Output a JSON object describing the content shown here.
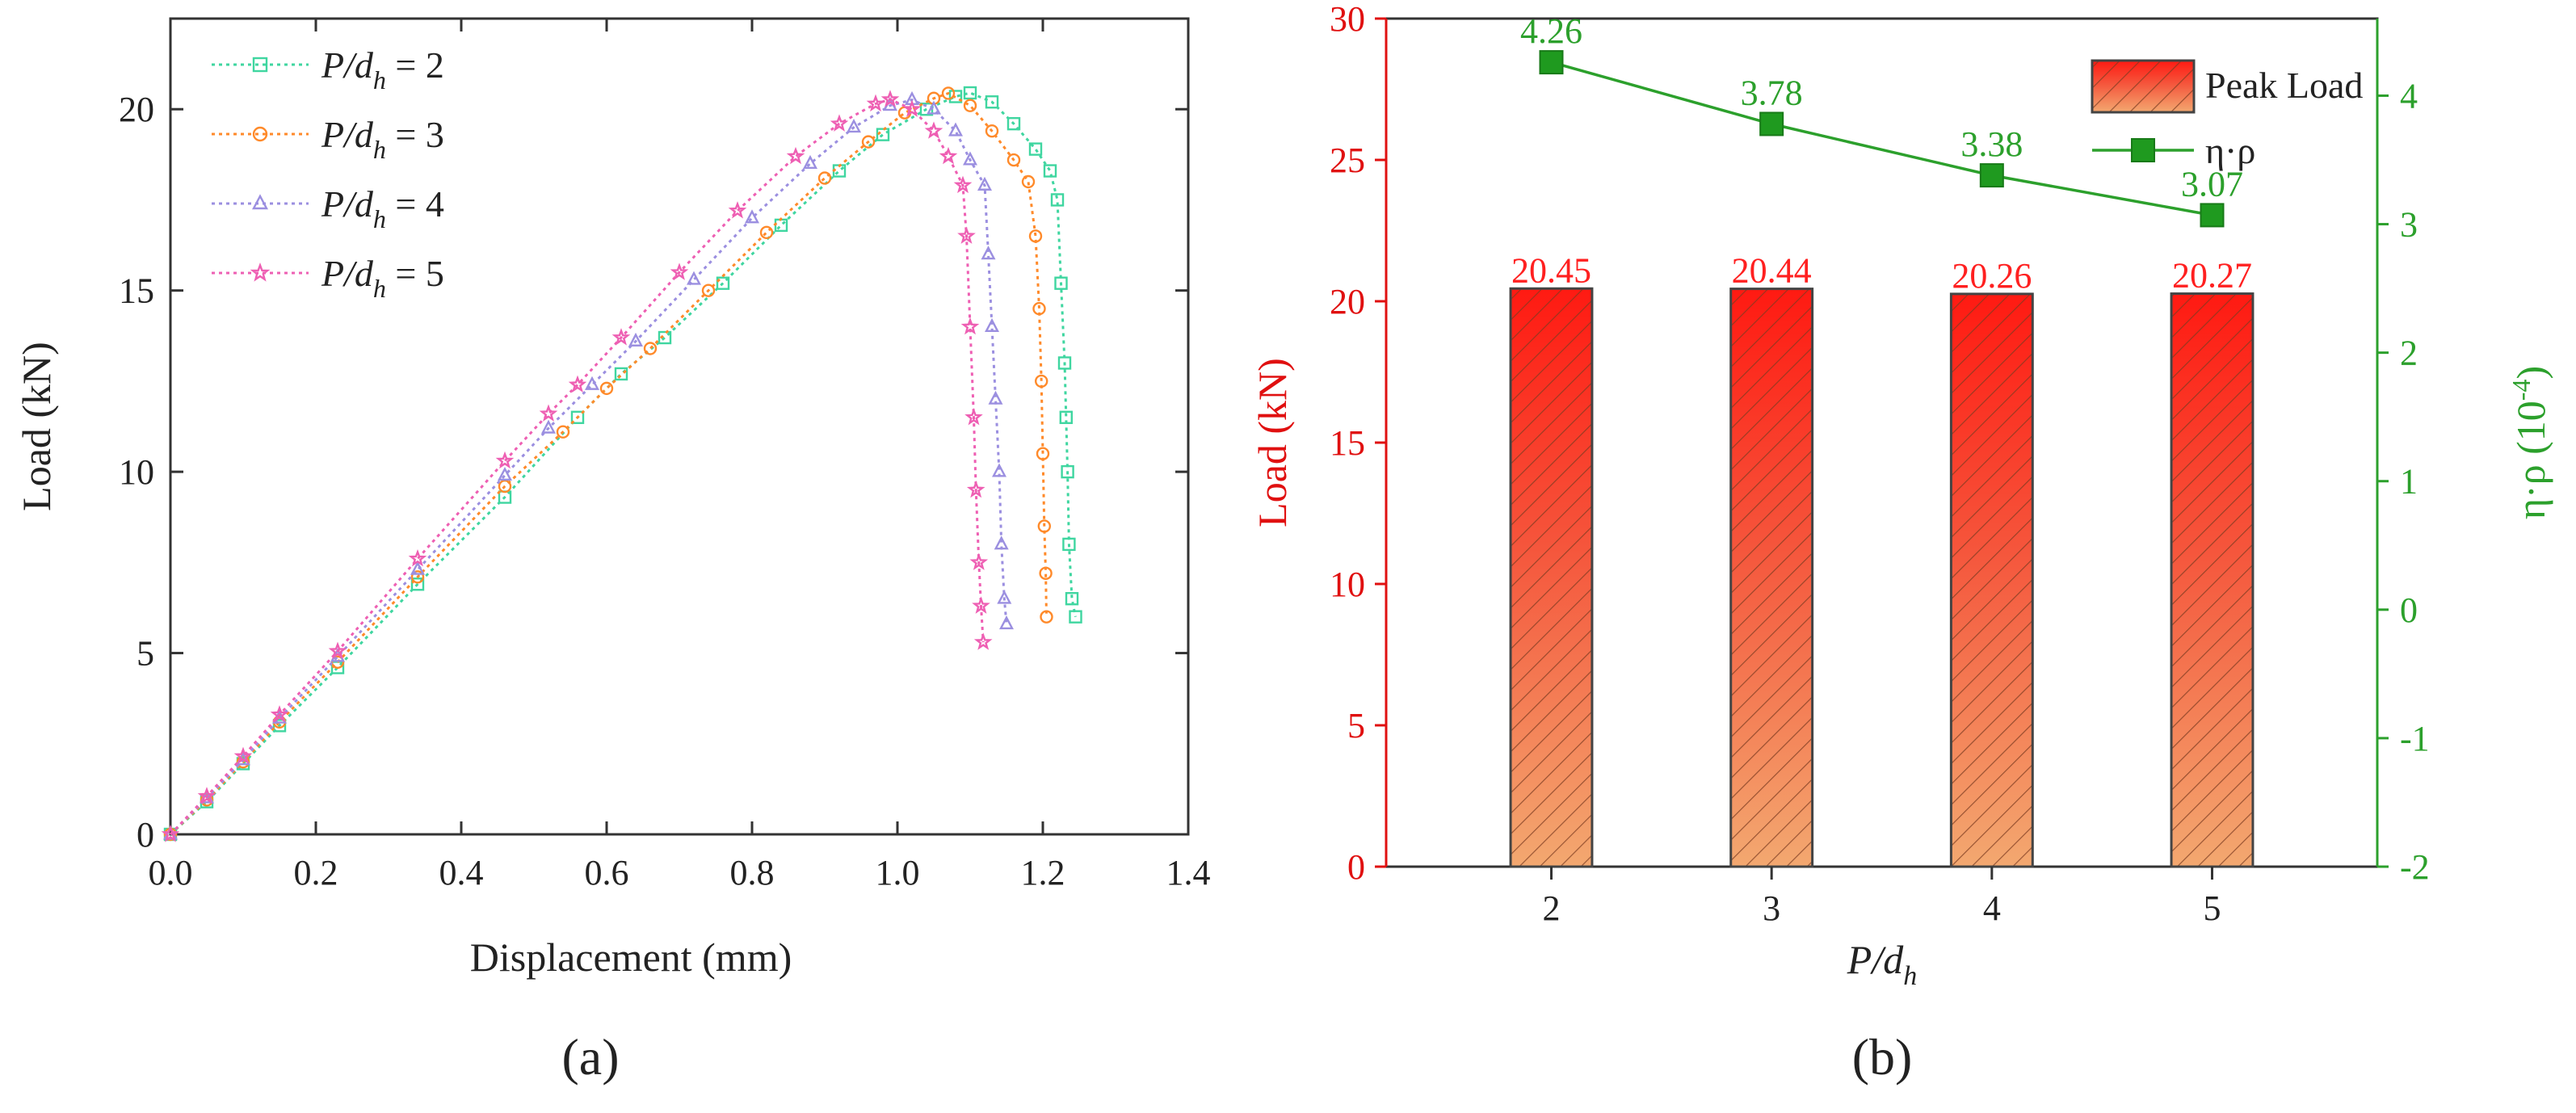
{
  "chart_data": [
    {
      "type": "line",
      "panel_label": "(a)",
      "xlabel": "Displacement (mm)",
      "ylabel": "Load (kN)",
      "xlim": [
        0.0,
        1.4
      ],
      "ylim": [
        0,
        22.5
      ],
      "xticks": [
        "0.0",
        "0.2",
        "0.4",
        "0.6",
        "0.8",
        "1.0",
        "1.2",
        "1.4"
      ],
      "yticks": [
        "0",
        "5",
        "10",
        "15",
        "20"
      ],
      "legend_position": "top-left",
      "series": [
        {
          "name": "P/dh = 2",
          "legend_var": "P/d",
          "legend_sub": "h",
          "legend_value": " = 2",
          "color": "#3fd6a0",
          "marker": "square",
          "points": [
            [
              0,
              0
            ],
            [
              0.05,
              0.9
            ],
            [
              0.1,
              1.95
            ],
            [
              0.15,
              3.0
            ],
            [
              0.23,
              4.6
            ],
            [
              0.34,
              6.9
            ],
            [
              0.46,
              9.3
            ],
            [
              0.56,
              11.5
            ],
            [
              0.62,
              12.7
            ],
            [
              0.68,
              13.7
            ],
            [
              0.76,
              15.2
            ],
            [
              0.84,
              16.8
            ],
            [
              0.92,
              18.3
            ],
            [
              0.98,
              19.3
            ],
            [
              1.04,
              20.0
            ],
            [
              1.08,
              20.35
            ],
            [
              1.1,
              20.45
            ],
            [
              1.13,
              20.2
            ],
            [
              1.16,
              19.6
            ],
            [
              1.19,
              18.9
            ],
            [
              1.21,
              18.3
            ],
            [
              1.22,
              17.5
            ],
            [
              1.225,
              15.2
            ],
            [
              1.23,
              13.0
            ],
            [
              1.232,
              11.5
            ],
            [
              1.234,
              10.0
            ],
            [
              1.236,
              8.0
            ],
            [
              1.24,
              6.5
            ],
            [
              1.245,
              6.0
            ]
          ]
        },
        {
          "name": "P/dh = 3",
          "legend_var": "P/d",
          "legend_sub": "h",
          "legend_value": " = 3",
          "color": "#ff8a2a",
          "marker": "circle",
          "points": [
            [
              0,
              0
            ],
            [
              0.05,
              0.95
            ],
            [
              0.1,
              2.0
            ],
            [
              0.15,
              3.1
            ],
            [
              0.23,
              4.75
            ],
            [
              0.34,
              7.1
            ],
            [
              0.46,
              9.6
            ],
            [
              0.54,
              11.1
            ],
            [
              0.6,
              12.3
            ],
            [
              0.66,
              13.4
            ],
            [
              0.74,
              15.0
            ],
            [
              0.82,
              16.6
            ],
            [
              0.9,
              18.1
            ],
            [
              0.96,
              19.1
            ],
            [
              1.01,
              19.9
            ],
            [
              1.05,
              20.3
            ],
            [
              1.07,
              20.44
            ],
            [
              1.1,
              20.1
            ],
            [
              1.13,
              19.4
            ],
            [
              1.16,
              18.6
            ],
            [
              1.18,
              18.0
            ],
            [
              1.19,
              16.5
            ],
            [
              1.195,
              14.5
            ],
            [
              1.198,
              12.5
            ],
            [
              1.2,
              10.5
            ],
            [
              1.202,
              8.5
            ],
            [
              1.204,
              7.2
            ],
            [
              1.205,
              6.0
            ]
          ]
        },
        {
          "name": "P/dh = 4",
          "legend_var": "P/d",
          "legend_sub": "h",
          "legend_value": " = 4",
          "color": "#9b8fe0",
          "marker": "triangle",
          "points": [
            [
              0,
              0
            ],
            [
              0.05,
              1.0
            ],
            [
              0.1,
              2.05
            ],
            [
              0.15,
              3.2
            ],
            [
              0.23,
              4.9
            ],
            [
              0.34,
              7.3
            ],
            [
              0.46,
              9.9
            ],
            [
              0.52,
              11.2
            ],
            [
              0.58,
              12.4
            ],
            [
              0.64,
              13.6
            ],
            [
              0.72,
              15.3
            ],
            [
              0.8,
              17.0
            ],
            [
              0.88,
              18.5
            ],
            [
              0.94,
              19.5
            ],
            [
              0.99,
              20.1
            ],
            [
              1.02,
              20.26
            ],
            [
              1.05,
              20.0
            ],
            [
              1.08,
              19.4
            ],
            [
              1.1,
              18.6
            ],
            [
              1.12,
              17.9
            ],
            [
              1.125,
              16.0
            ],
            [
              1.13,
              14.0
            ],
            [
              1.135,
              12.0
            ],
            [
              1.14,
              10.0
            ],
            [
              1.143,
              8.0
            ],
            [
              1.147,
              6.5
            ],
            [
              1.15,
              5.8
            ]
          ]
        },
        {
          "name": "P/dh = 5",
          "legend_var": "P/d",
          "legend_sub": "h",
          "legend_value": " = 5",
          "color": "#ee5fb3",
          "marker": "star",
          "points": [
            [
              0,
              0
            ],
            [
              0.05,
              1.05
            ],
            [
              0.1,
              2.15
            ],
            [
              0.15,
              3.3
            ],
            [
              0.23,
              5.05
            ],
            [
              0.34,
              7.6
            ],
            [
              0.46,
              10.3
            ],
            [
              0.52,
              11.6
            ],
            [
              0.56,
              12.4
            ],
            [
              0.62,
              13.7
            ],
            [
              0.7,
              15.5
            ],
            [
              0.78,
              17.2
            ],
            [
              0.86,
              18.7
            ],
            [
              0.92,
              19.6
            ],
            [
              0.97,
              20.15
            ],
            [
              0.99,
              20.27
            ],
            [
              1.02,
              20.0
            ],
            [
              1.05,
              19.4
            ],
            [
              1.07,
              18.7
            ],
            [
              1.09,
              17.9
            ],
            [
              1.095,
              16.5
            ],
            [
              1.1,
              14.0
            ],
            [
              1.105,
              11.5
            ],
            [
              1.108,
              9.5
            ],
            [
              1.112,
              7.5
            ],
            [
              1.115,
              6.3
            ],
            [
              1.118,
              5.3
            ]
          ]
        }
      ]
    },
    {
      "type": "bar",
      "panel_label": "(b)",
      "xlabel_var": "P/d",
      "xlabel_sub": "h",
      "ylabel": "Load (kN)",
      "y2label": "η·ρ (10⁻⁴)",
      "y2label_main": "η·ρ (10",
      "y2label_sup": "-4",
      "y2label_end": ")",
      "categories": [
        "2",
        "3",
        "4",
        "5"
      ],
      "ylim": [
        0,
        30
      ],
      "yticks": [
        "0",
        "5",
        "10",
        "15",
        "20",
        "25",
        "30"
      ],
      "y2lim": [
        -2,
        4.6
      ],
      "y2ticks": [
        "-2",
        "-1",
        "0",
        "1",
        "2",
        "3",
        "4"
      ],
      "legend_position": "top-right",
      "series": [
        {
          "name": "Peak Load",
          "axis": "left",
          "kind": "bar",
          "color": "#ff2020",
          "values": [
            20.45,
            20.44,
            20.26,
            20.27
          ],
          "value_labels": [
            "20.45",
            "20.44",
            "20.26",
            "20.27"
          ]
        },
        {
          "name": "η·ρ",
          "axis": "right",
          "kind": "line",
          "color": "#2ca02c",
          "values": [
            4.26,
            3.78,
            3.38,
            3.07
          ],
          "value_labels": [
            "4.26",
            "3.78",
            "3.38",
            "3.07"
          ]
        }
      ]
    }
  ]
}
